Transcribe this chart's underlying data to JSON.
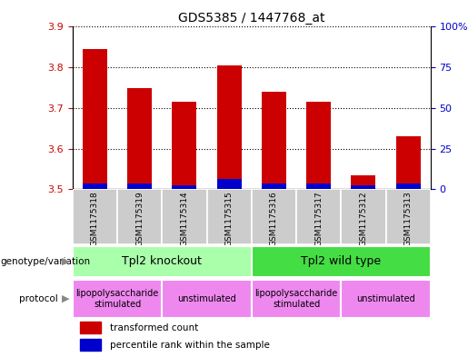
{
  "title": "GDS5385 / 1447768_at",
  "samples": [
    "GSM1175318",
    "GSM1175319",
    "GSM1175314",
    "GSM1175315",
    "GSM1175316",
    "GSM1175317",
    "GSM1175312",
    "GSM1175313"
  ],
  "red_values": [
    3.845,
    3.75,
    3.715,
    3.805,
    3.74,
    3.715,
    3.535,
    3.63
  ],
  "blue_values": [
    3.515,
    3.515,
    3.51,
    3.525,
    3.515,
    3.515,
    3.51,
    3.515
  ],
  "bar_base": 3.5,
  "ylim_left": [
    3.5,
    3.9
  ],
  "ylim_right": [
    0,
    100
  ],
  "yticks_left": [
    3.5,
    3.6,
    3.7,
    3.8,
    3.9
  ],
  "yticks_right": [
    0,
    25,
    50,
    75,
    100
  ],
  "ytick_labels_right": [
    "0",
    "25",
    "50",
    "75",
    "100%"
  ],
  "red_color": "#cc0000",
  "blue_color": "#0000cc",
  "bar_width": 0.55,
  "genotype_groups": [
    {
      "label": "Tpl2 knockout",
      "start": 0,
      "end": 4,
      "color": "#aaffaa"
    },
    {
      "label": "Tpl2 wild type",
      "start": 4,
      "end": 8,
      "color": "#44dd44"
    }
  ],
  "protocol_groups": [
    {
      "label": "lipopolysaccharide\nstimulated",
      "start": 0,
      "end": 2,
      "color": "#ee88ee"
    },
    {
      "label": "unstimulated",
      "start": 2,
      "end": 4,
      "color": "#ee88ee"
    },
    {
      "label": "lipopolysaccharide\nstimulated",
      "start": 4,
      "end": 6,
      "color": "#ee88ee"
    },
    {
      "label": "unstimulated",
      "start": 6,
      "end": 8,
      "color": "#ee88ee"
    }
  ],
  "legend_items": [
    {
      "label": "transformed count",
      "color": "#cc0000"
    },
    {
      "label": "percentile rank within the sample",
      "color": "#0000cc"
    }
  ],
  "left_label_color": "#000000",
  "xlabel_color": "#cc0000",
  "ylabel_right_color": "#0000cc",
  "sample_bg_color": "#cccccc",
  "arrow_color": "#888888"
}
